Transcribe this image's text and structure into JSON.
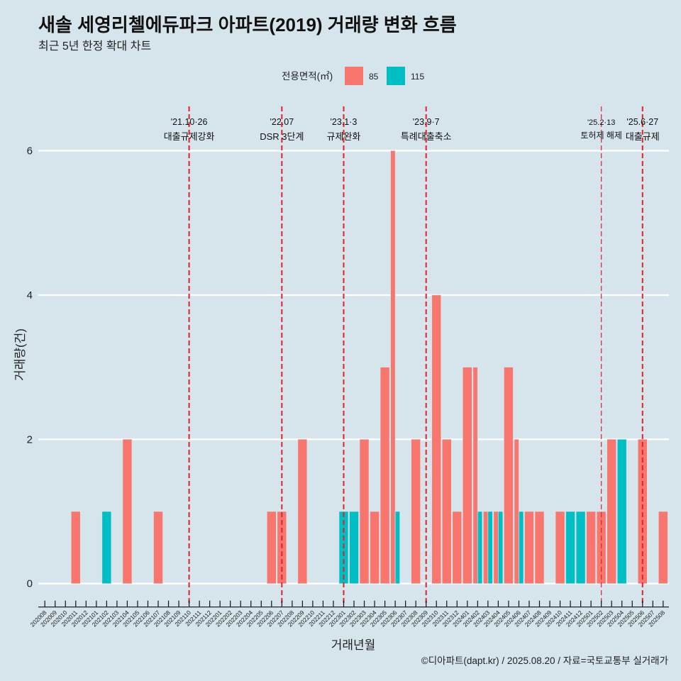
{
  "page": {
    "background": "#D6E4EB"
  },
  "chart_data": {
    "type": "bar",
    "title": "새솔 세영리첼에듀파크 아파트(2019) 거래량 변화 흐름",
    "subtitle": "최근 5년 한정 확대 차트",
    "xlabel": "거래년월",
    "ylabel": "거래량(건)",
    "ylim": [
      0,
      6.6
    ],
    "yticks": [
      0,
      2,
      4,
      6
    ],
    "ytick_labels": [
      "0",
      "2",
      "4",
      "6"
    ],
    "grid": "horizontal",
    "legend": {
      "title": "전용면적(㎡)",
      "position": "top"
    },
    "categories": [
      "202008",
      "202009",
      "202010",
      "202011",
      "202012",
      "202101",
      "202102",
      "202103",
      "202104",
      "202105",
      "202106",
      "202107",
      "202108",
      "202109",
      "202110",
      "202111",
      "202112",
      "202201",
      "202202",
      "202203",
      "202204",
      "202205",
      "202206",
      "202207",
      "202208",
      "202209",
      "202210",
      "202211",
      "202212",
      "202301",
      "202302",
      "202303",
      "202304",
      "202305",
      "202306",
      "202307",
      "202308",
      "202309",
      "202310",
      "202311",
      "202312",
      "202401",
      "202402",
      "202403",
      "202404",
      "202405",
      "202406",
      "202407",
      "202408",
      "202409",
      "202410",
      "202411",
      "202412",
      "202501",
      "202502",
      "202503",
      "202504",
      "202505",
      "202506",
      "202507",
      "202508"
    ],
    "series": [
      {
        "name": "85",
        "color": "#F8766D",
        "values": [
          null,
          null,
          null,
          1,
          null,
          null,
          null,
          null,
          2,
          null,
          null,
          1,
          null,
          null,
          null,
          null,
          null,
          null,
          null,
          null,
          null,
          null,
          1,
          1,
          null,
          2,
          null,
          null,
          null,
          null,
          null,
          2,
          1,
          3,
          6,
          null,
          2,
          null,
          4,
          2,
          1,
          3,
          3,
          1,
          1,
          3,
          2,
          1,
          1,
          null,
          1,
          null,
          null,
          1,
          1,
          2,
          null,
          null,
          2,
          null,
          1
        ]
      },
      {
        "name": "115",
        "color": "#00BFC4",
        "values": [
          null,
          null,
          null,
          null,
          null,
          null,
          1,
          null,
          null,
          null,
          null,
          null,
          null,
          null,
          null,
          null,
          null,
          null,
          null,
          null,
          null,
          null,
          null,
          null,
          null,
          null,
          null,
          null,
          null,
          1,
          1,
          null,
          null,
          null,
          1,
          null,
          null,
          null,
          null,
          null,
          null,
          null,
          1,
          1,
          1,
          null,
          1,
          null,
          null,
          null,
          null,
          1,
          1,
          null,
          null,
          null,
          2,
          null,
          null,
          null,
          null
        ]
      }
    ],
    "annotation_color": "#E3202B",
    "annotations": [
      {
        "x": "202110",
        "date": "'21.10·26",
        "label": "대출규제강화",
        "style": "major"
      },
      {
        "x": "202207",
        "date": "'22.07",
        "label": "DSR 3단계",
        "style": "major"
      },
      {
        "x": "202301",
        "date": "'23.1·3",
        "label": "규제완화",
        "style": "major"
      },
      {
        "x": "202309",
        "date": "'23.9·7",
        "label": "특례대출축소",
        "style": "major"
      },
      {
        "x": "202502",
        "date": "'25.2·13",
        "label": "토허제 해제",
        "style": "minor"
      },
      {
        "x": "202506",
        "date": "'25.6·27",
        "label": "대출규제",
        "style": "major"
      }
    ]
  },
  "footer": {
    "caption": "©디아파트(dapt.kr) / 2025.08.20 / 자료=국토교통부 실거래가"
  }
}
